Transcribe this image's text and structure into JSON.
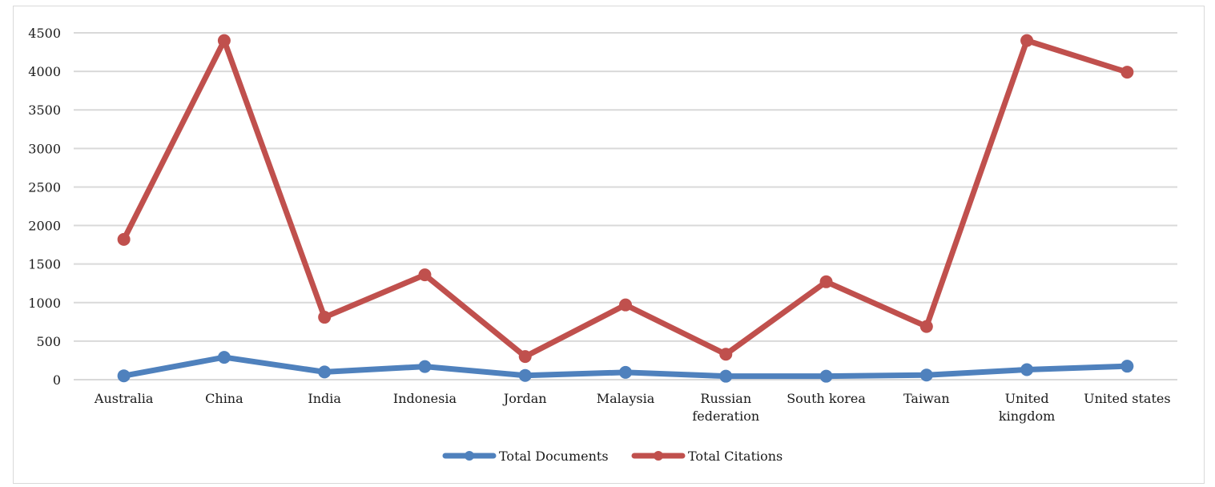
{
  "chart_data": {
    "type": "line",
    "title": "",
    "xlabel": "",
    "ylabel": "",
    "ylim": [
      0,
      4500
    ],
    "y_ticks": [
      0,
      500,
      1000,
      1500,
      2000,
      2500,
      3000,
      3500,
      4000,
      4500
    ],
    "categories": [
      [
        "Australia"
      ],
      [
        "China"
      ],
      [
        "India"
      ],
      [
        "Indonesia"
      ],
      [
        "Jordan"
      ],
      [
        "Malaysia"
      ],
      [
        "Russian",
        "federation"
      ],
      [
        "South korea"
      ],
      [
        "Taiwan"
      ],
      [
        "United",
        "kingdom"
      ],
      [
        "United states"
      ]
    ],
    "grid": true,
    "legend_position": "bottom",
    "series": [
      {
        "name": "Total Documents",
        "color": "#4f81bd",
        "values": [
          50,
          290,
          100,
          170,
          55,
          95,
          45,
          45,
          60,
          130,
          175
        ]
      },
      {
        "name": "Total Citations",
        "color": "#c0504d",
        "values": [
          1820,
          4400,
          810,
          1360,
          300,
          970,
          330,
          1270,
          690,
          4400,
          3990
        ]
      }
    ]
  }
}
